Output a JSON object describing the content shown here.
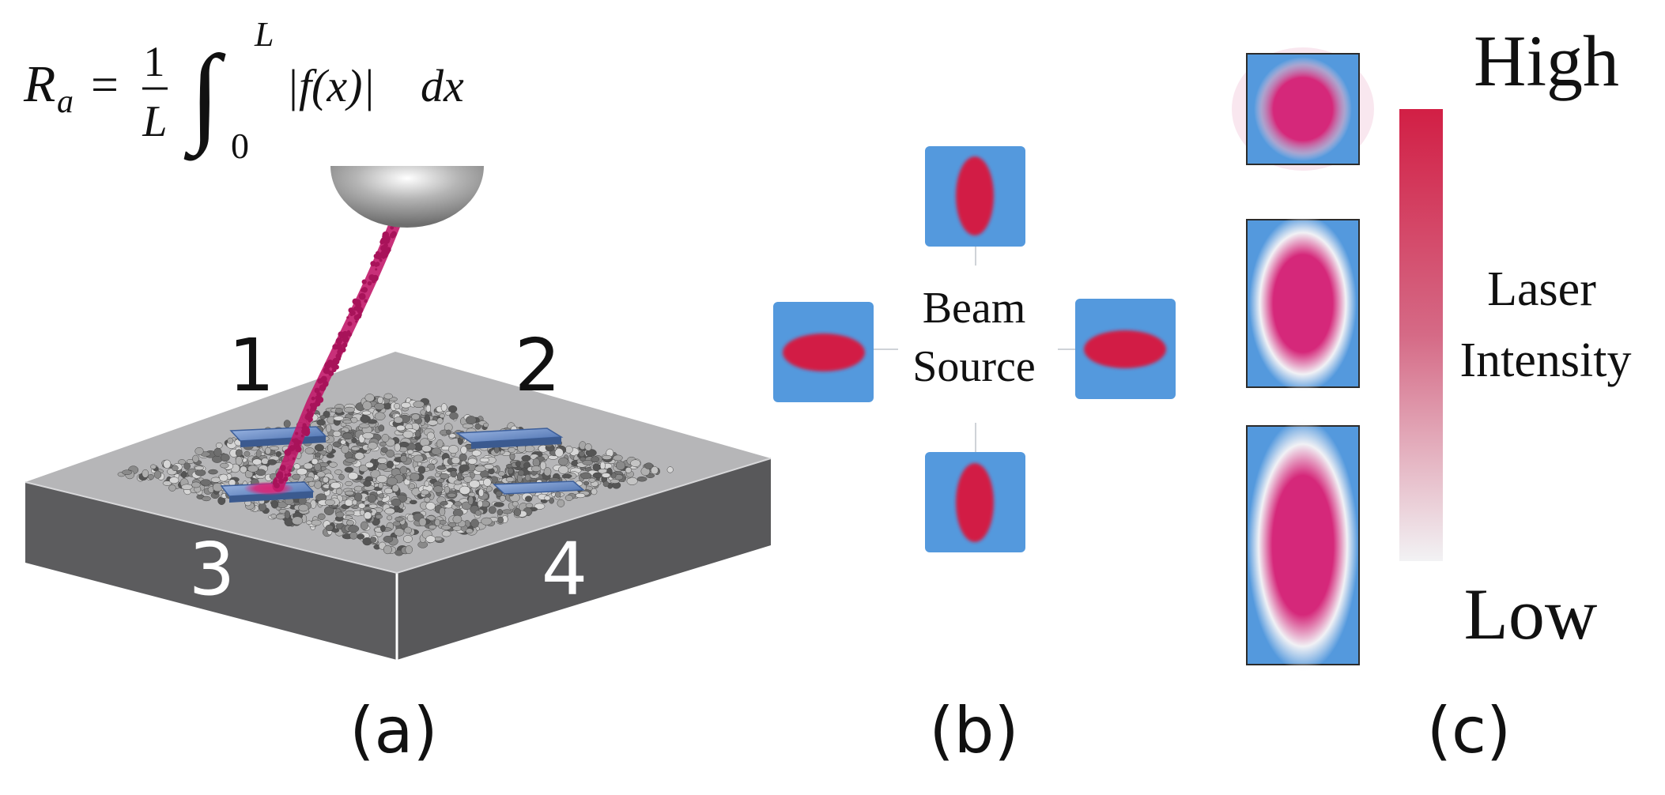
{
  "panel_a": {
    "formula": {
      "lhs": "R",
      "lhs_sub": "a",
      "equals": "=",
      "frac_num": "1",
      "frac_den": "L",
      "integral": "∫",
      "upper": "L",
      "lower": "0",
      "integrand": "|f(x)|",
      "differential": "dx"
    },
    "spot_labels": [
      "1",
      "2",
      "3",
      "4"
    ],
    "caption": "(a)"
  },
  "panel_b": {
    "center_line1": "Beam",
    "center_line2": "Source",
    "caption": "(b)"
  },
  "panel_c": {
    "high_label": "High",
    "low_label": "Low",
    "scale_line1": "Laser",
    "scale_line2": "Intensity",
    "caption": "(c)"
  },
  "colors": {
    "tile_blue": "#5499dd",
    "beam_red": "#d21f45",
    "laser_magenta": "#c2196a",
    "block_dark": "#5c5c5e",
    "block_top": "#b6b6b8",
    "pad_blue": "#6b8fc8"
  }
}
